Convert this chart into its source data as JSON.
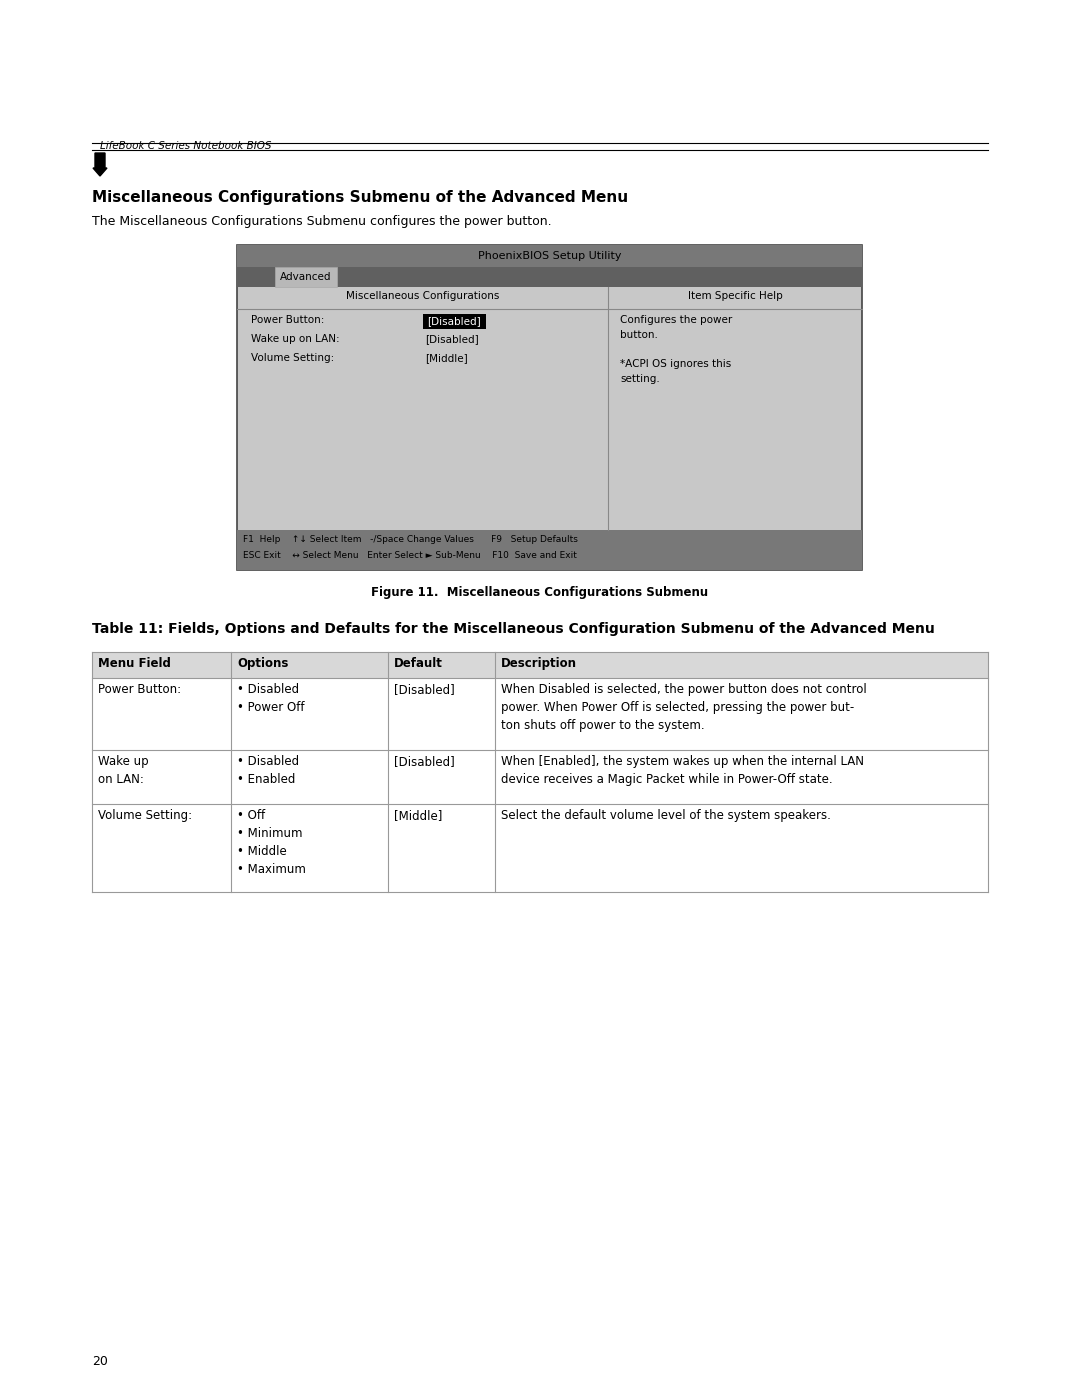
{
  "page_bg": "#ffffff",
  "header_italic_text": "LifeBook C Series Notebook BIOS",
  "section_title": "Miscellaneous Configurations Submenu of the Advanced Menu",
  "section_desc": "The Miscellaneous Configurations Submenu configures the power button.",
  "bios_title": "PhoenixBIOS Setup Utility",
  "bios_tab": "Advanced",
  "bios_left_header": "Miscellaneous Configurations",
  "bios_right_header": "Item Specific Help",
  "bios_fields": [
    {
      "label": "Power Button:",
      "value": "[Disabled]",
      "highlight": true
    },
    {
      "label": "Wake up on LAN:",
      "value": "[Disabled]",
      "highlight": false
    },
    {
      "label": "Volume Setting:",
      "value": "[Middle]",
      "highlight": false
    }
  ],
  "bios_help_text": "Configures the power\nbutton.\n\n*ACPI OS ignores this\nsetting.",
  "bios_footer_line1": "F1  Help    ↑↓ Select Item   -/Space Change Values      F9   Setup Defaults",
  "bios_footer_line2": "ESC Exit    ↔ Select Menu   Enter Select ► Sub-Menu    F10  Save and Exit",
  "figure_caption": "Figure 11.  Miscellaneous Configurations Submenu",
  "table_title": "Table 11: Fields, Options and Defaults for the Miscellaneous Configuration Submenu of the Advanced Menu",
  "table_headers": [
    "Menu Field",
    "Options",
    "Default",
    "Description"
  ],
  "table_rows": [
    {
      "field": "Power Button:",
      "options": "• Disabled\n• Power Off",
      "default": "[Disabled]",
      "description": "When Disabled is selected, the power button does not control\npower. When Power Off is selected, pressing the power but-\nton shuts off power to the system."
    },
    {
      "field": "Wake up\non LAN:",
      "options": "• Disabled\n• Enabled",
      "default": "[Disabled]",
      "description": "When [Enabled], the system wakes up when the internal LAN\ndevice receives a Magic Packet while in Power-Off state."
    },
    {
      "field": "Volume Setting:",
      "options": "• Off\n• Minimum\n• Middle\n• Maximum",
      "default": "[Middle]",
      "description": "Select the default volume level of the system speakers."
    }
  ],
  "page_number": "20"
}
